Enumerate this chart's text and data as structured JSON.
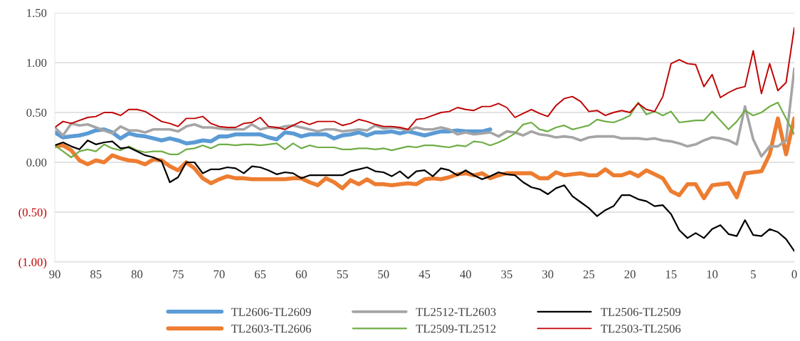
{
  "chart_data": {
    "type": "line",
    "x": [
      90,
      89,
      88,
      87,
      86,
      85,
      84,
      83,
      82,
      81,
      80,
      79,
      78,
      77,
      76,
      75,
      74,
      73,
      72,
      71,
      70,
      69,
      68,
      67,
      66,
      65,
      64,
      63,
      62,
      61,
      60,
      59,
      58,
      57,
      56,
      55,
      54,
      53,
      52,
      51,
      50,
      49,
      48,
      47,
      46,
      45,
      44,
      43,
      42,
      41,
      40,
      39,
      38,
      37,
      36,
      35,
      34,
      33,
      32,
      31,
      30,
      29,
      28,
      27,
      26,
      25,
      24,
      23,
      22,
      21,
      20,
      19,
      18,
      17,
      16,
      15,
      14,
      13,
      12,
      11,
      10,
      9,
      8,
      7,
      6,
      5,
      4,
      3,
      2,
      1,
      0
    ],
    "series": [
      {
        "name": "TL2606-TL2609",
        "color": "#5b9bd5",
        "values": [
          0.3,
          0.25,
          0.26,
          0.27,
          0.29,
          0.32,
          0.33,
          0.3,
          0.24,
          0.29,
          0.27,
          0.26,
          0.24,
          0.22,
          0.24,
          0.22,
          0.19,
          0.2,
          0.22,
          0.21,
          0.26,
          0.26,
          0.28,
          0.28,
          0.28,
          0.28,
          0.25,
          0.23,
          0.3,
          0.29,
          0.26,
          0.28,
          0.28,
          0.28,
          0.24,
          0.27,
          0.28,
          0.3,
          0.27,
          0.3,
          0.3,
          0.31,
          0.29,
          0.31,
          0.29,
          0.27,
          0.29,
          0.31,
          0.31,
          0.32,
          0.31,
          0.31,
          0.31,
          0.33,
          null,
          null,
          null,
          null,
          null,
          null,
          null,
          null,
          null,
          null,
          null,
          null,
          null,
          null,
          null,
          null,
          null,
          null,
          null,
          null,
          null,
          null,
          null,
          null,
          null,
          null,
          null,
          null,
          null,
          null,
          null,
          null,
          null,
          null,
          null,
          null,
          null
        ]
      },
      {
        "name": "TL2603-TL2606",
        "color": "#ed7d31",
        "values": [
          0.16,
          0.17,
          0.12,
          0.02,
          -0.02,
          0.02,
          0.0,
          0.07,
          0.04,
          0.02,
          0.01,
          -0.02,
          0.03,
          0.02,
          -0.04,
          -0.08,
          0.0,
          -0.06,
          -0.16,
          -0.21,
          -0.17,
          -0.14,
          -0.16,
          -0.16,
          -0.17,
          -0.17,
          -0.17,
          -0.17,
          -0.17,
          -0.16,
          -0.16,
          -0.2,
          -0.23,
          -0.16,
          -0.2,
          -0.26,
          -0.18,
          -0.22,
          -0.17,
          -0.22,
          -0.22,
          -0.23,
          -0.22,
          -0.21,
          -0.22,
          -0.17,
          -0.16,
          -0.17,
          -0.15,
          -0.12,
          -0.11,
          -0.13,
          -0.11,
          -0.16,
          -0.13,
          -0.11,
          -0.11,
          -0.11,
          -0.11,
          -0.16,
          -0.16,
          -0.1,
          -0.13,
          -0.12,
          -0.11,
          -0.13,
          -0.13,
          -0.07,
          -0.13,
          -0.13,
          -0.1,
          -0.14,
          -0.08,
          -0.12,
          -0.16,
          -0.29,
          -0.33,
          -0.22,
          -0.22,
          -0.36,
          -0.23,
          -0.22,
          -0.21,
          -0.35,
          -0.11,
          -0.1,
          -0.09,
          0.08,
          0.44,
          0.08,
          0.44
        ]
      },
      {
        "name": "TL2512-TL2603",
        "color": "#a5a5a5",
        "values": [
          0.35,
          0.27,
          0.39,
          0.37,
          0.38,
          0.35,
          0.32,
          0.29,
          0.36,
          0.32,
          0.32,
          0.3,
          0.33,
          0.33,
          0.33,
          0.31,
          0.36,
          0.38,
          0.35,
          0.35,
          0.34,
          0.33,
          0.33,
          0.33,
          0.38,
          0.33,
          0.35,
          0.34,
          0.36,
          0.37,
          0.35,
          0.33,
          0.31,
          0.33,
          0.33,
          0.31,
          0.32,
          0.33,
          0.32,
          0.37,
          0.34,
          0.35,
          0.34,
          0.32,
          0.35,
          0.33,
          0.33,
          0.35,
          0.33,
          0.28,
          0.3,
          0.28,
          0.29,
          0.3,
          0.26,
          0.31,
          0.3,
          0.27,
          0.31,
          0.28,
          0.27,
          0.25,
          0.26,
          0.25,
          0.22,
          0.25,
          0.26,
          0.26,
          0.26,
          0.24,
          0.24,
          0.24,
          0.23,
          0.24,
          0.22,
          0.21,
          0.19,
          0.16,
          0.18,
          0.22,
          0.25,
          0.24,
          0.22,
          0.18,
          0.56,
          0.23,
          0.06,
          0.16,
          0.16,
          0.22,
          0.94
        ]
      },
      {
        "name": "TL2509-TL2512",
        "color": "#70ad47",
        "values": [
          0.17,
          0.11,
          0.05,
          0.11,
          0.13,
          0.11,
          0.18,
          0.14,
          0.12,
          0.16,
          0.12,
          0.1,
          0.11,
          0.11,
          0.08,
          0.08,
          0.13,
          0.14,
          0.17,
          0.14,
          0.18,
          0.18,
          0.17,
          0.18,
          0.18,
          0.17,
          0.18,
          0.19,
          0.13,
          0.19,
          0.14,
          0.17,
          0.15,
          0.15,
          0.15,
          0.13,
          0.13,
          0.14,
          0.14,
          0.13,
          0.14,
          0.12,
          0.14,
          0.16,
          0.15,
          0.17,
          0.17,
          0.16,
          0.15,
          0.17,
          0.16,
          0.21,
          0.2,
          0.17,
          0.2,
          0.24,
          0.29,
          0.38,
          0.4,
          0.33,
          0.31,
          0.35,
          0.37,
          0.33,
          0.35,
          0.37,
          0.43,
          0.41,
          0.4,
          0.43,
          0.47,
          0.6,
          0.48,
          0.51,
          0.47,
          0.51,
          0.4,
          0.41,
          0.42,
          0.42,
          0.51,
          0.42,
          0.33,
          0.41,
          0.52,
          0.47,
          0.5,
          0.56,
          0.6,
          0.44,
          0.28
        ]
      },
      {
        "name": "TL2506-TL2509",
        "color": "#000000",
        "values": [
          0.17,
          0.2,
          0.16,
          0.13,
          0.22,
          0.18,
          0.2,
          0.21,
          0.14,
          0.15,
          0.11,
          0.07,
          0.05,
          0.01,
          -0.2,
          -0.15,
          0.0,
          0.0,
          -0.11,
          -0.07,
          -0.07,
          -0.05,
          -0.06,
          -0.11,
          -0.04,
          -0.05,
          -0.08,
          -0.12,
          -0.1,
          -0.11,
          -0.16,
          -0.13,
          -0.13,
          -0.13,
          -0.13,
          -0.13,
          -0.09,
          -0.07,
          -0.05,
          -0.09,
          -0.1,
          -0.14,
          -0.09,
          -0.16,
          -0.09,
          -0.08,
          -0.14,
          -0.06,
          -0.08,
          -0.13,
          -0.08,
          -0.13,
          -0.17,
          -0.14,
          -0.1,
          -0.12,
          -0.13,
          -0.2,
          -0.25,
          -0.27,
          -0.32,
          -0.26,
          -0.23,
          -0.34,
          -0.4,
          -0.46,
          -0.54,
          -0.48,
          -0.44,
          -0.33,
          -0.33,
          -0.37,
          -0.39,
          -0.44,
          -0.43,
          -0.52,
          -0.68,
          -0.76,
          -0.71,
          -0.76,
          -0.67,
          -0.63,
          -0.72,
          -0.74,
          -0.58,
          -0.73,
          -0.74,
          -0.67,
          -0.7,
          -0.77,
          -0.89
        ]
      },
      {
        "name": "TL2503-TL2506",
        "color": "#c00000",
        "values": [
          0.35,
          0.41,
          0.39,
          0.42,
          0.45,
          0.46,
          0.5,
          0.5,
          0.47,
          0.53,
          0.53,
          0.51,
          0.46,
          0.41,
          0.39,
          0.36,
          0.44,
          0.44,
          0.46,
          0.39,
          0.36,
          0.35,
          0.35,
          0.39,
          0.4,
          0.45,
          0.36,
          0.35,
          0.33,
          0.37,
          0.41,
          0.38,
          0.41,
          0.41,
          0.41,
          0.37,
          0.39,
          0.43,
          0.41,
          0.38,
          0.36,
          0.36,
          0.35,
          0.33,
          0.43,
          0.44,
          0.47,
          0.5,
          0.51,
          0.55,
          0.53,
          0.52,
          0.56,
          0.56,
          0.59,
          0.55,
          0.45,
          0.49,
          0.53,
          0.49,
          0.46,
          0.57,
          0.64,
          0.66,
          0.61,
          0.51,
          0.52,
          0.47,
          0.5,
          0.52,
          0.5,
          0.59,
          0.53,
          0.51,
          0.66,
          0.99,
          1.03,
          0.99,
          0.98,
          0.76,
          0.88,
          0.65,
          0.7,
          0.74,
          0.76,
          1.12,
          0.69,
          0.99,
          0.72,
          0.8,
          1.35
        ]
      }
    ],
    "xlim": [
      90,
      0
    ],
    "xticks": [
      90,
      85,
      80,
      75,
      70,
      65,
      60,
      55,
      50,
      45,
      40,
      35,
      30,
      25,
      20,
      15,
      10,
      5,
      0
    ],
    "ylim": [
      -1.0,
      1.5
    ],
    "yticks": [
      {
        "value": -1.0,
        "label": "(1.00)"
      },
      {
        "value": -0.5,
        "label": "(0.50)"
      },
      {
        "value": 0.0,
        "label": "0.00"
      },
      {
        "value": 0.5,
        "label": "0.50"
      },
      {
        "value": 1.0,
        "label": "1.00"
      },
      {
        "value": 1.5,
        "label": "1.50"
      }
    ],
    "grid": "y",
    "legend": "bottom",
    "marker": "none",
    "line_style": "solid"
  }
}
